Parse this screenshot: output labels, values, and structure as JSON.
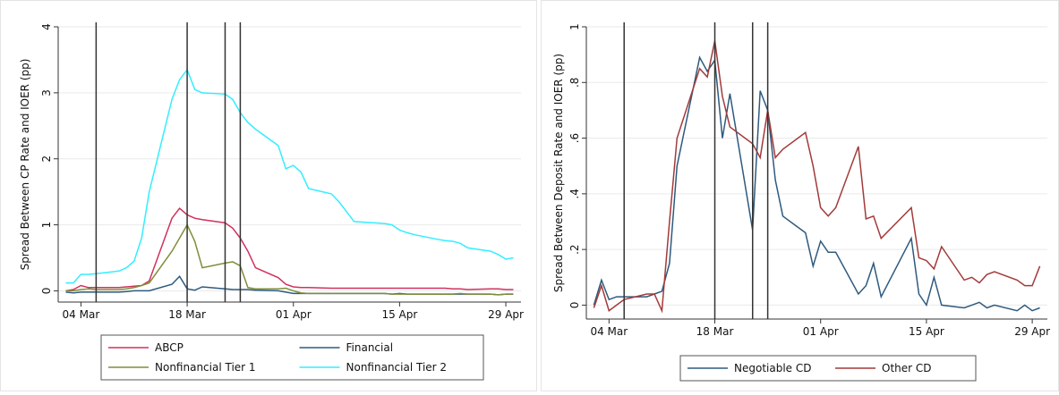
{
  "chart_data": [
    {
      "type": "line",
      "y_label": "Spread Between CP Rate and IOER (pp)",
      "x": [
        "03-02",
        "03-03",
        "03-04",
        "03-05",
        "03-06",
        "03-09",
        "03-10",
        "03-11",
        "03-12",
        "03-13",
        "03-16",
        "03-17",
        "03-18",
        "03-19",
        "03-20",
        "03-23",
        "03-24",
        "03-25",
        "03-26",
        "03-27",
        "03-30",
        "03-31",
        "04-01",
        "04-02",
        "04-03",
        "04-06",
        "04-07",
        "04-08",
        "04-09",
        "04-13",
        "04-14",
        "04-15",
        "04-16",
        "04-17",
        "04-20",
        "04-21",
        "04-22",
        "04-23",
        "04-24",
        "04-27",
        "04-28",
        "04-29",
        "04-30"
      ],
      "series": [
        {
          "name": "ABCP",
          "color": "#d0315c",
          "values": [
            0.0,
            0.02,
            0.08,
            0.05,
            0.05,
            0.05,
            0.06,
            0.07,
            0.08,
            0.15,
            1.1,
            1.25,
            1.15,
            1.1,
            1.08,
            1.03,
            0.95,
            0.8,
            0.6,
            0.35,
            0.2,
            0.1,
            0.06,
            0.05,
            0.05,
            0.04,
            0.04,
            0.04,
            0.04,
            0.04,
            0.04,
            0.04,
            0.04,
            0.04,
            0.04,
            0.04,
            0.03,
            0.03,
            0.02,
            0.03,
            0.03,
            0.02,
            0.02
          ]
        },
        {
          "name": "Financial",
          "color": "#2e5a7e",
          "values": [
            -0.02,
            -0.03,
            -0.02,
            -0.02,
            -0.02,
            -0.02,
            -0.01,
            0,
            0,
            0,
            0.1,
            0.22,
            0.03,
            0.01,
            0.06,
            0.03,
            0.02,
            0.02,
            0.02,
            0.01,
            0,
            -0.02,
            -0.04,
            -0.04,
            -0.04,
            -0.04,
            -0.04,
            -0.04,
            -0.04,
            -0.04,
            -0.05,
            -0.04,
            -0.05,
            -0.05,
            -0.05,
            -0.05,
            -0.05,
            -0.05,
            -0.05,
            -0.05,
            -0.06,
            -0.05,
            -0.05
          ]
        },
        {
          "name": "Nonfinancial Tier 1",
          "color": "#7f8f3a",
          "values": [
            0,
            0,
            0.02,
            0.03,
            0.02,
            0.02,
            0.03,
            0.05,
            0.08,
            0.12,
            0.6,
            0.8,
            1.0,
            0.75,
            0.35,
            0.42,
            0.44,
            0.38,
            0.05,
            0.03,
            0.03,
            0.04,
            0.0,
            -0.03,
            -0.04,
            -0.04,
            -0.04,
            -0.04,
            -0.04,
            -0.04,
            -0.05,
            -0.05,
            -0.05,
            -0.05,
            -0.05,
            -0.05,
            -0.05,
            -0.04,
            -0.05,
            -0.05,
            -0.06,
            -0.05,
            -0.05
          ]
        },
        {
          "name": "Nonfinancial Tier 2",
          "color": "#33eeff",
          "values": [
            0.12,
            0.12,
            0.25,
            0.25,
            0.26,
            0.3,
            0.35,
            0.45,
            0.8,
            1.5,
            2.9,
            3.2,
            3.35,
            3.05,
            3.0,
            2.98,
            2.9,
            2.7,
            2.55,
            2.45,
            2.2,
            1.85,
            1.9,
            1.8,
            1.55,
            1.47,
            1.35,
            1.2,
            1.05,
            1.02,
            1.0,
            0.92,
            0.88,
            0.85,
            0.78,
            0.76,
            0.75,
            0.72,
            0.65,
            0.6,
            0.55,
            0.48,
            0.5
          ]
        }
      ],
      "xlim": [
        "03-01",
        "05-01"
      ],
      "xticks": [
        {
          "value": "03-04",
          "label": "04 Mar"
        },
        {
          "value": "03-18",
          "label": "18 Mar"
        },
        {
          "value": "04-01",
          "label": "01 Apr"
        },
        {
          "value": "04-15",
          "label": "15 Apr"
        },
        {
          "value": "04-29",
          "label": "29 Apr"
        }
      ],
      "ylim": [
        -0.17,
        4.0
      ],
      "yticks": [
        0,
        1,
        2,
        3,
        4
      ],
      "vlines": [
        "03-06",
        "03-18",
        "03-23",
        "03-25"
      ],
      "grid": true,
      "legend": "bottom"
    },
    {
      "type": "line",
      "y_label": "Spread Between Deposit Rate and IOER (pp)",
      "x": [
        "03-02",
        "03-03",
        "03-04",
        "03-05",
        "03-06",
        "03-09",
        "03-10",
        "03-11",
        "03-12",
        "03-13",
        "03-16",
        "03-17",
        "03-18",
        "03-19",
        "03-20",
        "03-23",
        "03-24",
        "03-25",
        "03-26",
        "03-27",
        "03-30",
        "03-31",
        "04-01",
        "04-02",
        "04-03",
        "04-06",
        "04-07",
        "04-08",
        "04-09",
        "04-13",
        "04-14",
        "04-15",
        "04-16",
        "04-17",
        "04-20",
        "04-21",
        "04-22",
        "04-23",
        "04-24",
        "04-27",
        "04-28",
        "04-29",
        "04-30"
      ],
      "series": [
        {
          "name": "Negotiable CD",
          "color": "#2e5a7e",
          "values": [
            0.0,
            0.09,
            0.02,
            0.03,
            0.03,
            0.03,
            0.04,
            0.05,
            0.15,
            0.5,
            0.89,
            0.84,
            0.88,
            0.6,
            0.76,
            0.27,
            0.77,
            0.7,
            0.45,
            0.32,
            0.26,
            0.14,
            0.23,
            0.19,
            0.19,
            0.04,
            0.07,
            0.15,
            0.03,
            0.24,
            0.04,
            0.0,
            0.1,
            0.0,
            -0.01,
            0.0,
            0.01,
            -0.01,
            0.0,
            -0.02,
            0.0,
            -0.02,
            -0.01
          ]
        },
        {
          "name": "Other CD",
          "color": "#a33a3a",
          "values": [
            -0.01,
            0.07,
            -0.02,
            0.0,
            0.02,
            0.04,
            0.04,
            -0.02,
            0.3,
            0.6,
            0.85,
            0.82,
            0.95,
            0.75,
            0.64,
            0.58,
            0.53,
            0.7,
            0.53,
            0.56,
            0.62,
            0.5,
            0.35,
            0.32,
            0.35,
            0.57,
            0.31,
            0.32,
            0.24,
            0.35,
            0.17,
            0.16,
            0.13,
            0.21,
            0.09,
            0.1,
            0.08,
            0.11,
            0.12,
            0.09,
            0.07,
            0.07,
            0.14
          ]
        }
      ],
      "xlim": [
        "03-01",
        "05-01"
      ],
      "xticks": [
        {
          "value": "03-04",
          "label": "04 Mar"
        },
        {
          "value": "03-18",
          "label": "18 Mar"
        },
        {
          "value": "04-01",
          "label": "01 Apr"
        },
        {
          "value": "04-15",
          "label": "15 Apr"
        },
        {
          "value": "04-29",
          "label": "29 Apr"
        }
      ],
      "ylim": [
        -0.05,
        1.0
      ],
      "yticks": [
        0,
        {
          "value": 0.2,
          "label": ".2"
        },
        {
          "value": 0.4,
          "label": ".4"
        },
        {
          "value": 0.6,
          "label": ".6"
        },
        {
          "value": 0.8,
          "label": ".8"
        },
        1
      ],
      "vlines": [
        "03-06",
        "03-18",
        "03-23",
        "03-25"
      ],
      "grid": true,
      "legend": "bottom"
    }
  ]
}
